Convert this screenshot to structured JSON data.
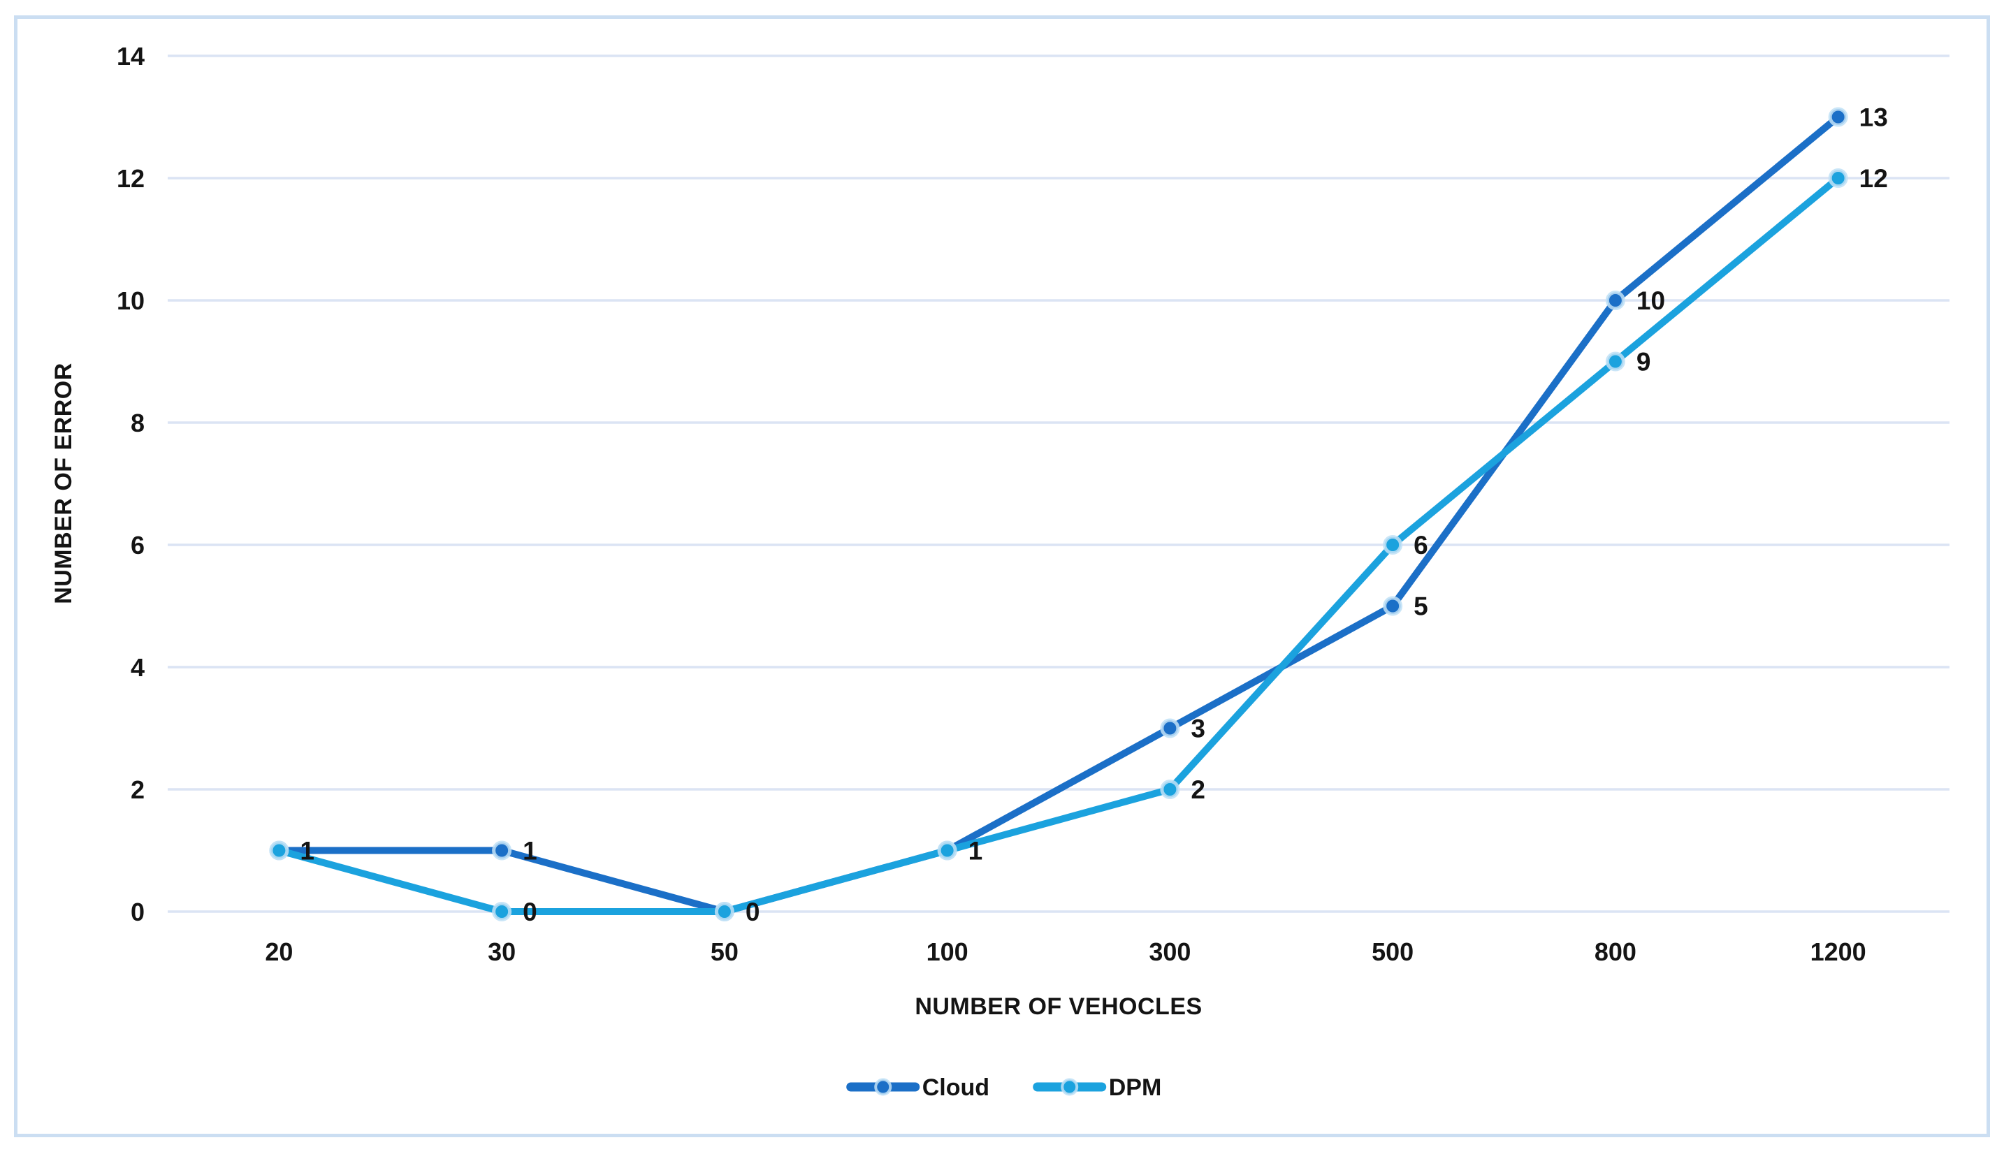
{
  "chart_data": {
    "type": "line",
    "title": "",
    "xlabel": "NUMBER OF VEHOCLES",
    "ylabel": "NUMBER OF ERROR",
    "categories": [
      "20",
      "30",
      "50",
      "100",
      "300",
      "500",
      "800",
      "1200"
    ],
    "series": [
      {
        "name": "Cloud",
        "color": "#1b6fc7",
        "values": [
          1,
          1,
          0,
          1,
          3,
          5,
          10,
          13
        ]
      },
      {
        "name": "DPM",
        "color": "#1ba2de",
        "values": [
          1,
          0,
          0,
          1,
          2,
          6,
          9,
          12
        ]
      }
    ],
    "ylim": [
      0,
      14
    ],
    "ytick_step": 2,
    "grid": "horizontal",
    "legend_position": "bottom",
    "data_labels": true
  },
  "style": {
    "grid_color": "#dbe4f4",
    "border_color": "#cbdef2",
    "marker_halo_color": "#bfe0f6",
    "text_color": "#141414",
    "background": "#ffffff"
  }
}
